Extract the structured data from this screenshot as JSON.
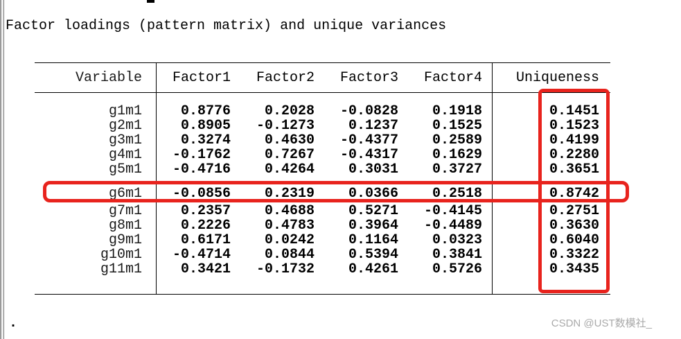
{
  "title": "Factor loadings (pattern matrix) and unique variances",
  "prompt": ".",
  "watermark": "CSDN @UST数模社_",
  "colors": {
    "highlight_red": "#e8231d",
    "text": "#000000",
    "watermark_gray": "#a9a9a9",
    "window_edge": "#f0f0f0"
  },
  "table": {
    "headers": [
      "Variable",
      "Factor1",
      "Factor2",
      "Factor3",
      "Factor4",
      "Uniqueness"
    ],
    "rows": [
      {
        "variable": "g1m1",
        "factor1": "0.8776",
        "factor2": "0.2028",
        "factor3": "-0.0828",
        "factor4": "0.1918",
        "uniqueness": "0.1451",
        "highlighted": false
      },
      {
        "variable": "g2m1",
        "factor1": "0.8905",
        "factor2": "-0.1273",
        "factor3": "0.1237",
        "factor4": "0.1525",
        "uniqueness": "0.1523",
        "highlighted": false
      },
      {
        "variable": "g3m1",
        "factor1": "0.3274",
        "factor2": "0.4630",
        "factor3": "-0.4377",
        "factor4": "0.2589",
        "uniqueness": "0.4199",
        "highlighted": false
      },
      {
        "variable": "g4m1",
        "factor1": "-0.1762",
        "factor2": "0.7267",
        "factor3": "-0.4317",
        "factor4": "0.1629",
        "uniqueness": "0.2280",
        "highlighted": false
      },
      {
        "variable": "g5m1",
        "factor1": "-0.4716",
        "factor2": "0.4264",
        "factor3": "0.3031",
        "factor4": "0.3727",
        "uniqueness": "0.3651",
        "highlighted": false
      },
      {
        "variable": "g6m1",
        "factor1": "-0.0856",
        "factor2": "0.2319",
        "factor3": "0.0366",
        "factor4": "0.2518",
        "uniqueness": "0.8742",
        "highlighted": true
      },
      {
        "variable": "g7m1",
        "factor1": "0.2357",
        "factor2": "0.4688",
        "factor3": "0.5271",
        "factor4": "-0.4145",
        "uniqueness": "0.2751",
        "highlighted": false
      },
      {
        "variable": "g8m1",
        "factor1": "0.2226",
        "factor2": "0.4783",
        "factor3": "0.3964",
        "factor4": "-0.4489",
        "uniqueness": "0.3630",
        "highlighted": false
      },
      {
        "variable": "g9m1",
        "factor1": "0.6171",
        "factor2": "0.0242",
        "factor3": "0.1164",
        "factor4": "0.0323",
        "uniqueness": "0.6040",
        "highlighted": false
      },
      {
        "variable": "g10m1",
        "factor1": "-0.4714",
        "factor2": "0.0844",
        "factor3": "0.5394",
        "factor4": "0.3841",
        "uniqueness": "0.3322",
        "highlighted": false
      },
      {
        "variable": "g11m1",
        "factor1": "0.3421",
        "factor2": "-0.1732",
        "factor3": "0.4261",
        "factor4": "0.5726",
        "uniqueness": "0.3435",
        "highlighted": false
      }
    ]
  },
  "annotations": {
    "uniqueness_box": "highlight around Uniqueness column",
    "row_box": "highlight around g6m1 row"
  }
}
